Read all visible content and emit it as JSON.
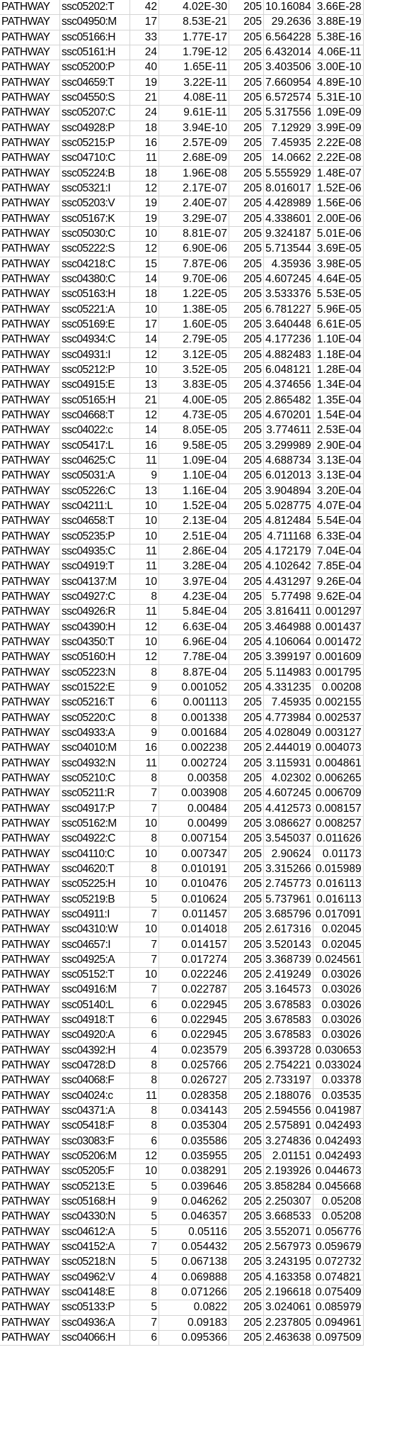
{
  "sheet": {
    "rows": [
      [
        "PATHWAY",
        "ssc05202:T",
        "42",
        "4.02E-30",
        "205",
        "10.16084",
        "3.66E-28"
      ],
      [
        "PATHWAY",
        "ssc04950:M",
        "17",
        "8.53E-21",
        "205",
        "29.2636",
        "3.88E-19"
      ],
      [
        "PATHWAY",
        "ssc05166:H",
        "33",
        "1.77E-17",
        "205",
        "6.564228",
        "5.38E-16"
      ],
      [
        "PATHWAY",
        "ssc05161:H",
        "24",
        "1.79E-12",
        "205",
        "6.432014",
        "4.06E-11"
      ],
      [
        "PATHWAY",
        "ssc05200:P",
        "40",
        "1.65E-11",
        "205",
        "3.403506",
        "3.00E-10"
      ],
      [
        "PATHWAY",
        "ssc04659:T",
        "19",
        "3.22E-11",
        "205",
        "7.660954",
        "4.89E-10"
      ],
      [
        "PATHWAY",
        "ssc04550:S",
        "21",
        "4.08E-11",
        "205",
        "6.572574",
        "5.31E-10"
      ],
      [
        "PATHWAY",
        "ssc05207:C",
        "24",
        "9.61E-11",
        "205",
        "5.317556",
        "1.09E-09"
      ],
      [
        "PATHWAY",
        "ssc04928:P",
        "18",
        "3.94E-10",
        "205",
        "7.12929",
        "3.99E-09"
      ],
      [
        "PATHWAY",
        "ssc05215:P",
        "16",
        "2.57E-09",
        "205",
        "7.45935",
        "2.22E-08"
      ],
      [
        "PATHWAY",
        "ssc04710:C",
        "11",
        "2.68E-09",
        "205",
        "14.0662",
        "2.22E-08"
      ],
      [
        "PATHWAY",
        "ssc05224:B",
        "18",
        "1.96E-08",
        "205",
        "5.555929",
        "1.48E-07"
      ],
      [
        "PATHWAY",
        "ssc05321:I",
        "12",
        "2.17E-07",
        "205",
        "8.016017",
        "1.52E-06"
      ],
      [
        "PATHWAY",
        "ssc05203:V",
        "19",
        "2.40E-07",
        "205",
        "4.428989",
        "1.56E-06"
      ],
      [
        "PATHWAY",
        "ssc05167:K",
        "19",
        "3.29E-07",
        "205",
        "4.338601",
        "2.00E-06"
      ],
      [
        "PATHWAY",
        "ssc05030:C",
        "10",
        "8.81E-07",
        "205",
        "9.324187",
        "5.01E-06"
      ],
      [
        "PATHWAY",
        "ssc05222:S",
        "12",
        "6.90E-06",
        "205",
        "5.713544",
        "3.69E-05"
      ],
      [
        "PATHWAY",
        "ssc04218:C",
        "15",
        "7.87E-06",
        "205",
        "4.35936",
        "3.98E-05"
      ],
      [
        "PATHWAY",
        "ssc04380:C",
        "14",
        "9.70E-06",
        "205",
        "4.607245",
        "4.64E-05"
      ],
      [
        "PATHWAY",
        "ssc05163:H",
        "18",
        "1.22E-05",
        "205",
        "3.533376",
        "5.53E-05"
      ],
      [
        "PATHWAY",
        "ssc05221:A",
        "10",
        "1.38E-05",
        "205",
        "6.781227",
        "5.96E-05"
      ],
      [
        "PATHWAY",
        "ssc05169:E",
        "17",
        "1.60E-05",
        "205",
        "3.640448",
        "6.61E-05"
      ],
      [
        "PATHWAY",
        "ssc04934:C",
        "14",
        "2.79E-05",
        "205",
        "4.177236",
        "1.10E-04"
      ],
      [
        "PATHWAY",
        "ssc04931:I",
        "12",
        "3.12E-05",
        "205",
        "4.882483",
        "1.18E-04"
      ],
      [
        "PATHWAY",
        "ssc05212:P",
        "10",
        "3.52E-05",
        "205",
        "6.048121",
        "1.28E-04"
      ],
      [
        "PATHWAY",
        "ssc04915:E",
        "13",
        "3.83E-05",
        "205",
        "4.374656",
        "1.34E-04"
      ],
      [
        "PATHWAY",
        "ssc05165:H",
        "21",
        "4.00E-05",
        "205",
        "2.865482",
        "1.35E-04"
      ],
      [
        "PATHWAY",
        "ssc04668:T",
        "12",
        "4.73E-05",
        "205",
        "4.670201",
        "1.54E-04"
      ],
      [
        "PATHWAY",
        "ssc04022:c",
        "14",
        "8.05E-05",
        "205",
        "3.774611",
        "2.53E-04"
      ],
      [
        "PATHWAY",
        "ssc05417:L",
        "16",
        "9.58E-05",
        "205",
        "3.299989",
        "2.90E-04"
      ],
      [
        "PATHWAY",
        "ssc04625:C",
        "11",
        "1.09E-04",
        "205",
        "4.688734",
        "3.13E-04"
      ],
      [
        "PATHWAY",
        "ssc05031:A",
        "9",
        "1.10E-04",
        "205",
        "6.012013",
        "3.13E-04"
      ],
      [
        "PATHWAY",
        "ssc05226:C",
        "13",
        "1.16E-04",
        "205",
        "3.904894",
        "3.20E-04"
      ],
      [
        "PATHWAY",
        "ssc04211:L",
        "10",
        "1.52E-04",
        "205",
        "5.028775",
        "4.07E-04"
      ],
      [
        "PATHWAY",
        "ssc04658:T",
        "10",
        "2.13E-04",
        "205",
        "4.812484",
        "5.54E-04"
      ],
      [
        "PATHWAY",
        "ssc05235:P",
        "10",
        "2.51E-04",
        "205",
        "4.711168",
        "6.33E-04"
      ],
      [
        "PATHWAY",
        "ssc04935:C",
        "11",
        "2.86E-04",
        "205",
        "4.172179",
        "7.04E-04"
      ],
      [
        "PATHWAY",
        "ssc04919:T",
        "11",
        "3.28E-04",
        "205",
        "4.102642",
        "7.85E-04"
      ],
      [
        "PATHWAY",
        "ssc04137:M",
        "10",
        "3.97E-04",
        "205",
        "4.431297",
        "9.26E-04"
      ],
      [
        "PATHWAY",
        "ssc04927:C",
        "8",
        "4.23E-04",
        "205",
        "5.77498",
        "9.62E-04"
      ],
      [
        "PATHWAY",
        "ssc04926:R",
        "11",
        "5.84E-04",
        "205",
        "3.816411",
        "0.001297"
      ],
      [
        "PATHWAY",
        "ssc04390:H",
        "12",
        "6.63E-04",
        "205",
        "3.464988",
        "0.001437"
      ],
      [
        "PATHWAY",
        "ssc04350:T",
        "10",
        "6.96E-04",
        "205",
        "4.106064",
        "0.001472"
      ],
      [
        "PATHWAY",
        "ssc05160:H",
        "12",
        "7.78E-04",
        "205",
        "3.399197",
        "0.001609"
      ],
      [
        "PATHWAY",
        "ssc05223:N",
        "8",
        "8.87E-04",
        "205",
        "5.114983",
        "0.001795"
      ],
      [
        "PATHWAY",
        "ssc01522:E",
        "9",
        "0.001052",
        "205",
        "4.331235",
        "0.00208"
      ],
      [
        "PATHWAY",
        "ssc05216:T",
        "6",
        "0.001113",
        "205",
        "7.45935",
        "0.002155"
      ],
      [
        "PATHWAY",
        "ssc05220:C",
        "8",
        "0.001338",
        "205",
        "4.773984",
        "0.002537"
      ],
      [
        "PATHWAY",
        "ssc04933:A",
        "9",
        "0.001684",
        "205",
        "4.028049",
        "0.003127"
      ],
      [
        "PATHWAY",
        "ssc04010:M",
        "16",
        "0.002238",
        "205",
        "2.444019",
        "0.004073"
      ],
      [
        "PATHWAY",
        "ssc04932:N",
        "11",
        "0.002724",
        "205",
        "3.115931",
        "0.004861"
      ],
      [
        "PATHWAY",
        "ssc05210:C",
        "8",
        "0.00358",
        "205",
        "4.02302",
        "0.006265"
      ],
      [
        "PATHWAY",
        "ssc05211:R",
        "7",
        "0.003908",
        "205",
        "4.607245",
        "0.006709"
      ],
      [
        "PATHWAY",
        "ssc04917:P",
        "7",
        "0.00484",
        "205",
        "4.412573",
        "0.008157"
      ],
      [
        "PATHWAY",
        "ssc05162:M",
        "10",
        "0.00499",
        "205",
        "3.086627",
        "0.008257"
      ],
      [
        "PATHWAY",
        "ssc04922:C",
        "8",
        "0.007154",
        "205",
        "3.545037",
        "0.011626"
      ],
      [
        "PATHWAY",
        "ssc04110:C",
        "10",
        "0.007347",
        "205",
        "2.90624",
        "0.01173"
      ],
      [
        "PATHWAY",
        "ssc04620:T",
        "8",
        "0.010191",
        "205",
        "3.315266",
        "0.015989"
      ],
      [
        "PATHWAY",
        "ssc05225:H",
        "10",
        "0.010476",
        "205",
        "2.745773",
        "0.016113"
      ],
      [
        "PATHWAY",
        "ssc05219:B",
        "5",
        "0.010624",
        "205",
        "5.737961",
        "0.016113"
      ],
      [
        "PATHWAY",
        "ssc04911:I",
        "7",
        "0.011457",
        "205",
        "3.685796",
        "0.017091"
      ],
      [
        "PATHWAY",
        "ssc04310:W",
        "10",
        "0.014018",
        "205",
        "2.617316",
        "0.02045"
      ],
      [
        "PATHWAY",
        "ssc04657:I",
        "7",
        "0.014157",
        "205",
        "3.520143",
        "0.02045"
      ],
      [
        "PATHWAY",
        "ssc04925:A",
        "7",
        "0.017274",
        "205",
        "3.368739",
        "0.024561"
      ],
      [
        "PATHWAY",
        "ssc05152:T",
        "10",
        "0.022246",
        "205",
        "2.419249",
        "0.03026"
      ],
      [
        "PATHWAY",
        "ssc04916:M",
        "7",
        "0.022787",
        "205",
        "3.164573",
        "0.03026"
      ],
      [
        "PATHWAY",
        "ssc05140:L",
        "6",
        "0.022945",
        "205",
        "3.678583",
        "0.03026"
      ],
      [
        "PATHWAY",
        "ssc04918:T",
        "6",
        "0.022945",
        "205",
        "3.678583",
        "0.03026"
      ],
      [
        "PATHWAY",
        "ssc04920:A",
        "6",
        "0.022945",
        "205",
        "3.678583",
        "0.03026"
      ],
      [
        "PATHWAY",
        "ssc04392:H",
        "4",
        "0.023579",
        "205",
        "6.393728",
        "0.030653"
      ],
      [
        "PATHWAY",
        "ssc04728:D",
        "8",
        "0.025766",
        "205",
        "2.754221",
        "0.033024"
      ],
      [
        "PATHWAY",
        "ssc04068:F",
        "8",
        "0.026727",
        "205",
        "2.733197",
        "0.03378"
      ],
      [
        "PATHWAY",
        "ssc04024:c",
        "11",
        "0.028358",
        "205",
        "2.188076",
        "0.03535"
      ],
      [
        "PATHWAY",
        "ssc04371:A",
        "8",
        "0.034143",
        "205",
        "2.594556",
        "0.041987"
      ],
      [
        "PATHWAY",
        "ssc05418:F",
        "8",
        "0.035304",
        "205",
        "2.575891",
        "0.042493"
      ],
      [
        "PATHWAY",
        "ssc03083:F",
        "6",
        "0.035586",
        "205",
        "3.274836",
        "0.042493"
      ],
      [
        "PATHWAY",
        "ssc05206:M",
        "12",
        "0.035955",
        "205",
        "2.01151",
        "0.042493"
      ],
      [
        "PATHWAY",
        "ssc05205:F",
        "10",
        "0.038291",
        "205",
        "2.193926",
        "0.044673"
      ],
      [
        "PATHWAY",
        "ssc05213:E",
        "5",
        "0.039646",
        "205",
        "3.858284",
        "0.045668"
      ],
      [
        "PATHWAY",
        "ssc05168:H",
        "9",
        "0.046262",
        "205",
        "2.250307",
        "0.05208"
      ],
      [
        "PATHWAY",
        "ssc04330:N",
        "5",
        "0.046357",
        "205",
        "3.668533",
        "0.05208"
      ],
      [
        "PATHWAY",
        "ssc04612:A",
        "5",
        "0.05116",
        "205",
        "3.552071",
        "0.056776"
      ],
      [
        "PATHWAY",
        "ssc04152:A",
        "7",
        "0.054432",
        "205",
        "2.567973",
        "0.059679"
      ],
      [
        "PATHWAY",
        "ssc05218:N",
        "5",
        "0.067138",
        "205",
        "3.243195",
        "0.072732"
      ],
      [
        "PATHWAY",
        "ssc04962:V",
        "4",
        "0.069888",
        "205",
        "4.163358",
        "0.074821"
      ],
      [
        "PATHWAY",
        "ssc04148:E",
        "8",
        "0.071266",
        "205",
        "2.196618",
        "0.075409"
      ],
      [
        "PATHWAY",
        "ssc05133:P",
        "5",
        "0.0822",
        "205",
        "3.024061",
        "0.085979"
      ],
      [
        "PATHWAY",
        "ssc04936:A",
        "7",
        "0.09183",
        "205",
        "2.237805",
        "0.094961"
      ],
      [
        "PATHWAY",
        "ssc04066:H",
        "6",
        "0.095366",
        "205",
        "2.463638",
        "0.097509"
      ]
    ]
  }
}
